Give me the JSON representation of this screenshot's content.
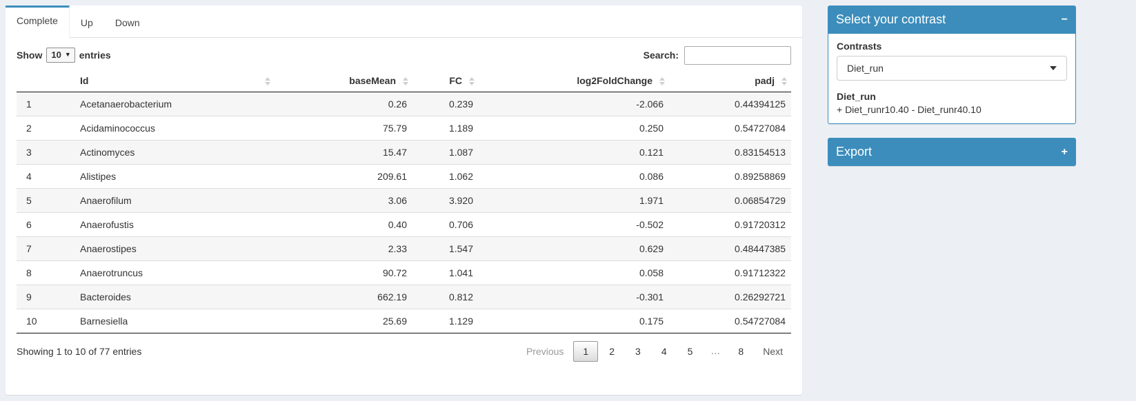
{
  "colors": {
    "primary": "#3c8dbc",
    "page_background": "#ecf0f5"
  },
  "tabs": [
    {
      "label": "Complete",
      "active": true
    },
    {
      "label": "Up",
      "active": false
    },
    {
      "label": "Down",
      "active": false
    }
  ],
  "controls": {
    "show_label": "Show",
    "page_length": "10",
    "entries_label": "entries",
    "search_label": "Search:",
    "search_value": ""
  },
  "table": {
    "columns": [
      "Id",
      "baseMean",
      "FC",
      "log2FoldChange",
      "padj"
    ],
    "rows": [
      {
        "index": "1",
        "id": "Acetanaerobacterium",
        "baseMean": "0.26",
        "fc": "0.239",
        "log2fc": "-2.066",
        "padj": "0.44394125"
      },
      {
        "index": "2",
        "id": "Acidaminococcus",
        "baseMean": "75.79",
        "fc": "1.189",
        "log2fc": "0.250",
        "padj": "0.54727084"
      },
      {
        "index": "3",
        "id": "Actinomyces",
        "baseMean": "15.47",
        "fc": "1.087",
        "log2fc": "0.121",
        "padj": "0.83154513"
      },
      {
        "index": "4",
        "id": "Alistipes",
        "baseMean": "209.61",
        "fc": "1.062",
        "log2fc": "0.086",
        "padj": "0.89258869"
      },
      {
        "index": "5",
        "id": "Anaerofilum",
        "baseMean": "3.06",
        "fc": "3.920",
        "log2fc": "1.971",
        "padj": "0.06854729"
      },
      {
        "index": "6",
        "id": "Anaerofustis",
        "baseMean": "0.40",
        "fc": "0.706",
        "log2fc": "-0.502",
        "padj": "0.91720312"
      },
      {
        "index": "7",
        "id": "Anaerostipes",
        "baseMean": "2.33",
        "fc": "1.547",
        "log2fc": "0.629",
        "padj": "0.48447385"
      },
      {
        "index": "8",
        "id": "Anaerotruncus",
        "baseMean": "90.72",
        "fc": "1.041",
        "log2fc": "0.058",
        "padj": "0.91712322"
      },
      {
        "index": "9",
        "id": "Bacteroides",
        "baseMean": "662.19",
        "fc": "0.812",
        "log2fc": "-0.301",
        "padj": "0.26292721"
      },
      {
        "index": "10",
        "id": "Barnesiella",
        "baseMean": "25.69",
        "fc": "1.129",
        "log2fc": "0.175",
        "padj": "0.54727084"
      }
    ]
  },
  "footer": {
    "info": "Showing 1 to 10 of 77 entries",
    "pagination": {
      "previous": "Previous",
      "pages": [
        "1",
        "2",
        "3",
        "4",
        "5",
        "…",
        "8"
      ],
      "current": "1",
      "next": "Next"
    }
  },
  "contrast_panel": {
    "title": "Select your contrast",
    "collapse_icon": "−",
    "contrasts_label": "Contrasts",
    "selected_contrast": "Diet_run",
    "contrast_name": "Diet_run",
    "contrast_formula": "+ Diet_runr10.40 - Diet_runr40.10"
  },
  "export_panel": {
    "title": "Export",
    "expand_icon": "+"
  }
}
